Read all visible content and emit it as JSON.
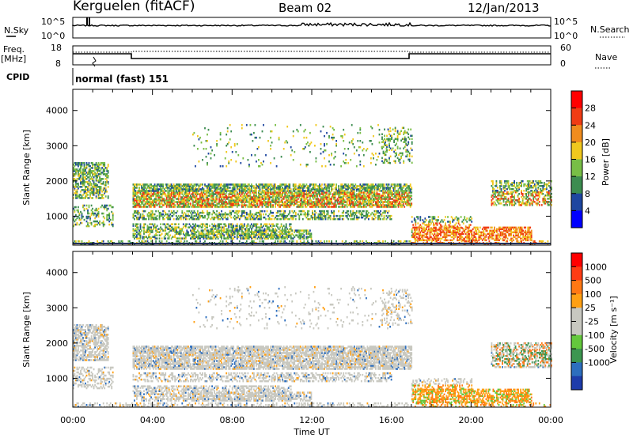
{
  "header": {
    "station": "Kerguelen (fitACF)",
    "beam": "Beam 02",
    "date": "12/Jan/2013"
  },
  "top_panels": {
    "nsky_label": "N.Sky",
    "nsky_ticks": [
      "10^5",
      "10^0"
    ],
    "nsearch_label": "N.Search",
    "freq_label_1": "Freq.",
    "freq_label_2": "[MHz]",
    "freq_ticks": [
      "18",
      "8"
    ],
    "nave_label": "Nave",
    "nave_ticks": [
      "60",
      "0"
    ],
    "cpid_label": "CPID",
    "cpid_value": "normal (fast) 151"
  },
  "chart_data": [
    {
      "type": "heatmap",
      "name": "power",
      "ylabel": "Slant Range [km]",
      "yticks": [
        1000,
        2000,
        3000,
        4000
      ],
      "ylim": [
        180,
        4600
      ],
      "colorbar_label": "Power [dB]",
      "colorbar_ticks": [
        "4",
        "8",
        "12",
        "16",
        "20",
        "24",
        "28"
      ],
      "colors": [
        "#0000ff",
        "#1e46a0",
        "#3c8c50",
        "#78be46",
        "#f0c81e",
        "#f08c1e",
        "#f03c14",
        "#ff0000"
      ],
      "xtick_labels": [
        "00:00",
        "04:00",
        "08:00",
        "12:00",
        "16:00",
        "20:00",
        "00:00"
      ]
    },
    {
      "type": "heatmap",
      "name": "velocity",
      "ylabel": "Slant Range [km]",
      "yticks": [
        1000,
        2000,
        3000,
        4000
      ],
      "ylim": [
        180,
        4600
      ],
      "colorbar_label": "Velocity [m s⁻¹]",
      "colorbar_ticks": [
        "1000",
        "500",
        "100",
        "25",
        "-25",
        "-100",
        "-500",
        "-1000"
      ],
      "colors": [
        "#1e3caa",
        "#2d6ebe",
        "#3c9650",
        "#64c83c",
        "#c8c8c0",
        "#c8c8c0",
        "#ffa014",
        "#ff7814",
        "#ff3c14",
        "#ff0000"
      ],
      "xlabel": "Time UT",
      "xtick_labels": [
        "00:00",
        "04:00",
        "08:00",
        "12:00",
        "16:00",
        "20:00",
        "00:00"
      ]
    }
  ]
}
